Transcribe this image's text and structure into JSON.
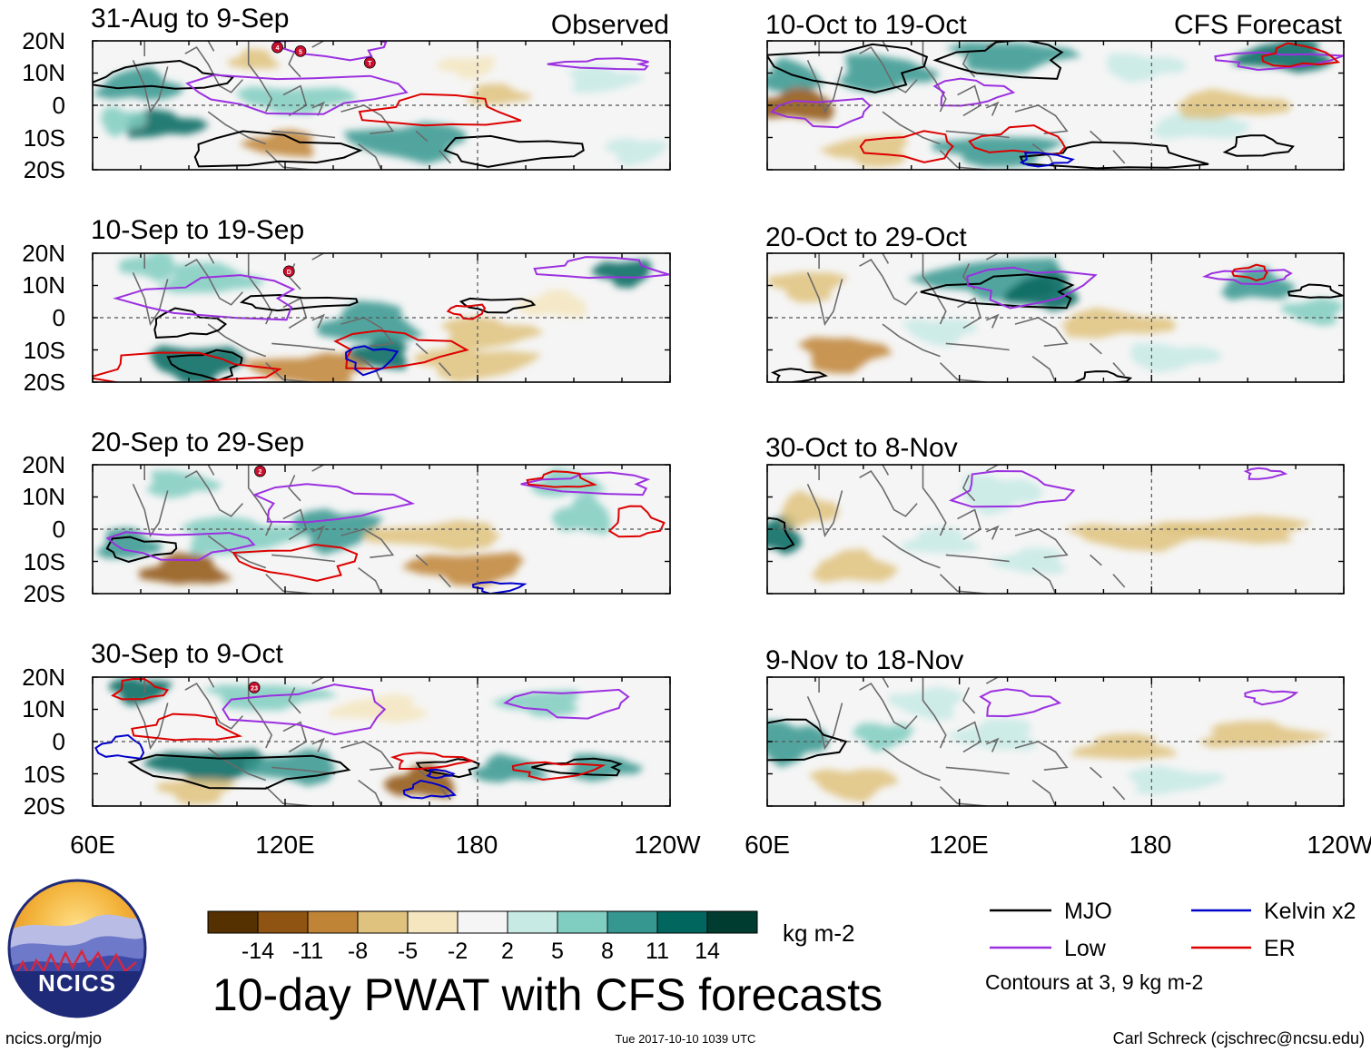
{
  "panels": [
    {
      "id": "p1",
      "title": "31-Aug to 9-Sep",
      "section": "Observed",
      "badges": [
        "4",
        "5",
        "T"
      ]
    },
    {
      "id": "p2",
      "title": "10-Sep to 19-Sep",
      "badges": [
        "D"
      ]
    },
    {
      "id": "p3",
      "title": "20-Sep to 29-Sep",
      "badges": [
        "2"
      ]
    },
    {
      "id": "p4",
      "title": "30-Sep to 9-Oct",
      "badges": [
        "23"
      ]
    },
    {
      "id": "p5",
      "title": "10-Oct to 19-Oct",
      "section": "CFS Forecast",
      "badges": []
    },
    {
      "id": "p6",
      "title": "20-Oct to 29-Oct",
      "badges": []
    },
    {
      "id": "p7",
      "title": "30-Oct to 8-Nov",
      "badges": []
    },
    {
      "id": "p8",
      "title": "9-Nov to 18-Nov",
      "badges": []
    }
  ],
  "lat_labels": [
    "20N",
    "10N",
    "0",
    "10S",
    "20S"
  ],
  "lon_labels": [
    "60E",
    "120E",
    "180",
    "120W"
  ],
  "colorbar": {
    "colors": [
      "#553000",
      "#8f5412",
      "#c08436",
      "#dfc27d",
      "#f5e6c0",
      "#f5f5f5",
      "#c7eae5",
      "#80cdc1",
      "#35978f",
      "#01665e",
      "#003c30"
    ],
    "tick_labels": [
      "-14",
      "-11",
      "-8",
      "-5",
      "-2",
      "2",
      "5",
      "8",
      "11",
      "14"
    ],
    "units": "kg m-2"
  },
  "legend": {
    "items": [
      {
        "label": "MJO",
        "color": "#000000"
      },
      {
        "label": "Kelvin x2",
        "color": "#0000cc"
      },
      {
        "label": "Low",
        "color": "#9b30e0"
      },
      {
        "label": "ER",
        "color": "#dd0000"
      }
    ],
    "note": "Contours at 3, 9 kg m-2"
  },
  "main_title": "10-day PWAT with CFS forecasts",
  "logo_text": "NCICS",
  "footer": {
    "left": "ncics.org/mjo",
    "center": "Tue 2017-10-10 1039 UTC",
    "right": "Carl Schreck (cjschrec@ncsu.edu)"
  }
}
